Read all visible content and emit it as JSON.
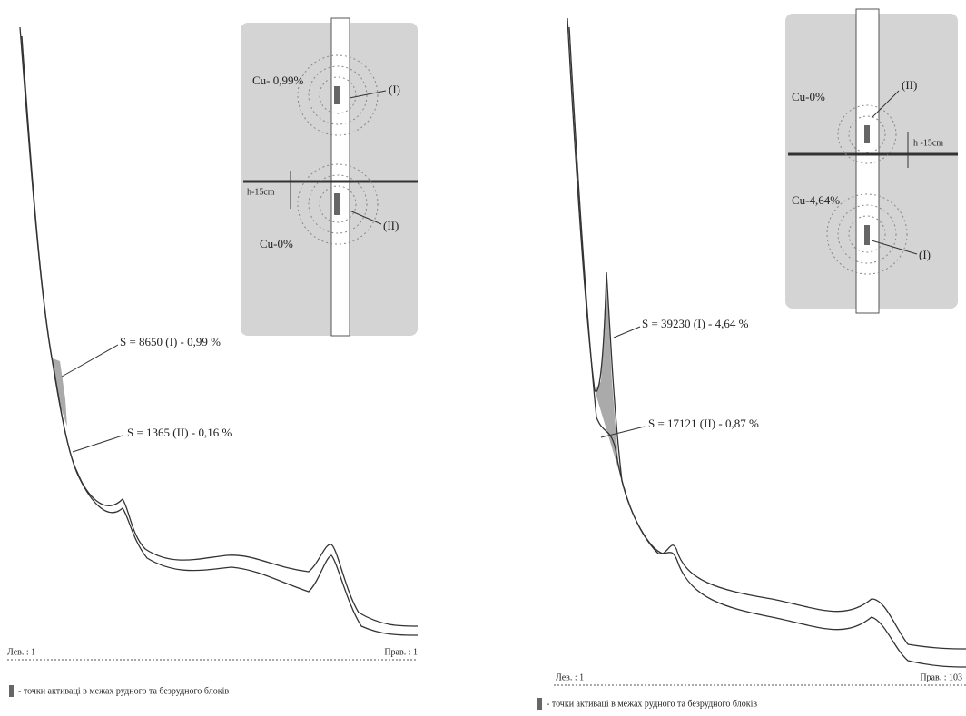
{
  "panels": [
    {
      "sample": {
        "grade_top": "Cu- 0,99%",
        "point_top": "(I)",
        "depth": "h-15cm",
        "point_bottom": "(II)",
        "grade_bottom": "Cu-0%"
      },
      "annotations": [
        "S = 8650 (I) - 0,99 %",
        "S = 1365 (II) - 0,16 %"
      ],
      "axis_left": "Лев. : 1",
      "axis_right": "Прав. : 1",
      "legend": "- точки активаці в межах рудного та безрудного блоків"
    },
    {
      "sample": {
        "grade_top": "Cu-0%",
        "point_top": "(II)",
        "depth": "h -15cm",
        "grade_bottom": "Cu-4,64%",
        "point_bottom": "(I)"
      },
      "annotations": [
        "S = 39230 (I) - 4,64 %",
        "S = 17121 (II) - 0,87 %"
      ],
      "axis_left": "Лев. : 1",
      "axis_right": "Прав. : 103",
      "legend": "- точки активаці в межах рудного та безрудного блоків"
    }
  ]
}
